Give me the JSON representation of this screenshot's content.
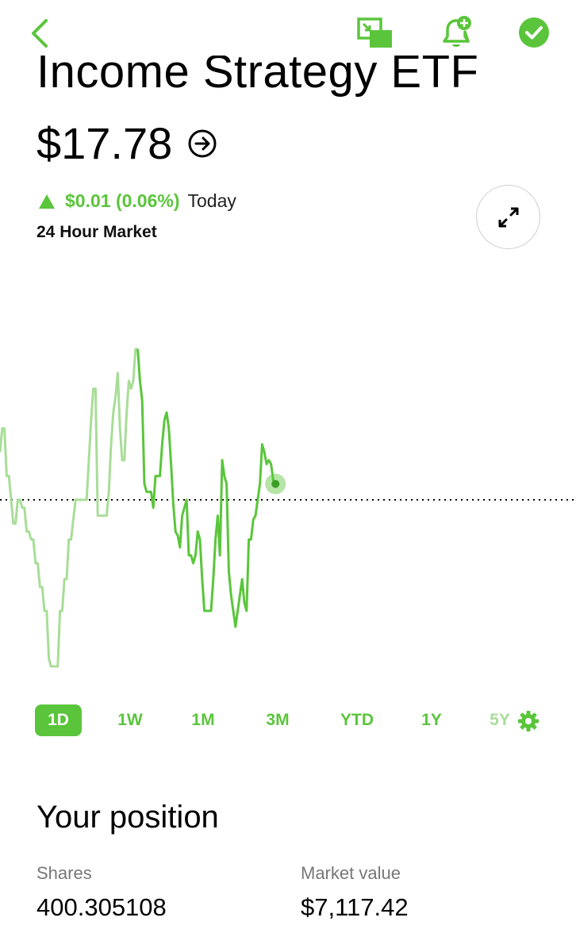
{
  "header": {
    "title": "Income Strategy ETF",
    "price": "$17.78",
    "change": "$0.01 (0.06%)",
    "change_period": "Today",
    "market_label": "24 Hour Market"
  },
  "colors": {
    "accent": "#5ac53b",
    "accent_light": "#a8dd98"
  },
  "icons": {
    "back": "chevron-left-icon",
    "pip": "picture-in-picture-icon",
    "alert": "bell-plus-icon",
    "watchlist": "check-circle-icon",
    "price_detail": "arrow-right-circle-icon",
    "expand": "expand-arrows-icon",
    "settings": "gear-icon"
  },
  "chart_data": {
    "type": "line",
    "title": "",
    "xlabel": "",
    "ylabel": "",
    "baseline_style": "dotted",
    "x": [
      0,
      1,
      2,
      3,
      4,
      5,
      6,
      7,
      8,
      9,
      10,
      11,
      12,
      13,
      14,
      15,
      16,
      17,
      18,
      19,
      20,
      21,
      22,
      23,
      24,
      25,
      26,
      27,
      28,
      29,
      30,
      31,
      32,
      33,
      34,
      35,
      36,
      37,
      38,
      39,
      40,
      41,
      42,
      43,
      44,
      45,
      46,
      47,
      48,
      49,
      50,
      51,
      52,
      53,
      54,
      55,
      56,
      57,
      58,
      59,
      60,
      61,
      62,
      63,
      64,
      65,
      66,
      67,
      68,
      69,
      70,
      71,
      72,
      73,
      74,
      75,
      76,
      77,
      78,
      79,
      80,
      81,
      82,
      83,
      84,
      85,
      86,
      87,
      88,
      89,
      90,
      91,
      92,
      93,
      94,
      95,
      96,
      97,
      98,
      99,
      100,
      101,
      102,
      103,
      104,
      105,
      106,
      107,
      108,
      109,
      110,
      111,
      112,
      113,
      114,
      115,
      116,
      117,
      118,
      119,
      120,
      121,
      122,
      123,
      124
    ],
    "values": [
      12,
      18,
      18,
      6,
      6,
      0,
      -6,
      -6,
      0,
      0,
      -2,
      -2,
      -8,
      -8,
      -10,
      -10,
      -16,
      -16,
      -22,
      -22,
      -28,
      -28,
      -40,
      -42,
      -42,
      -42,
      -42,
      -28,
      -28,
      -20,
      -20,
      -10,
      -10,
      -5,
      0,
      0,
      0,
      0,
      0,
      0,
      10,
      20,
      28,
      28,
      -4,
      -4,
      -4,
      -4,
      -4,
      2,
      14,
      22,
      26,
      32,
      18,
      10,
      10,
      22,
      30,
      28,
      30,
      38,
      38,
      30,
      25,
      4,
      2,
      2,
      2,
      -2,
      6,
      6,
      6,
      14,
      20,
      22,
      18,
      9,
      -1,
      -8,
      -9,
      -12,
      -4,
      -2,
      0,
      -14,
      -14,
      -16,
      -14,
      -8,
      -10,
      -20,
      -28,
      -28,
      -28,
      -28,
      -20,
      -10,
      -4,
      -14,
      10,
      6,
      4,
      -18,
      -24,
      -28,
      -32,
      -28,
      -24,
      -20,
      -26,
      -28,
      -10,
      -10,
      -5,
      -4,
      0,
      4,
      14,
      12,
      9,
      10,
      9,
      5,
      4
    ],
    "extended_hours_points": 62,
    "current_index": 124
  },
  "ranges": [
    {
      "label": "1D",
      "active": true
    },
    {
      "label": "1W",
      "active": false
    },
    {
      "label": "1M",
      "active": false
    },
    {
      "label": "3M",
      "active": false
    },
    {
      "label": "YTD",
      "active": false
    },
    {
      "label": "1Y",
      "active": false
    },
    {
      "label": "5Y",
      "active": false
    }
  ],
  "position": {
    "title": "Your position",
    "shares_label": "Shares",
    "shares_value": "400.305108",
    "market_value_label": "Market value",
    "market_value_value": "$7,117.42"
  }
}
